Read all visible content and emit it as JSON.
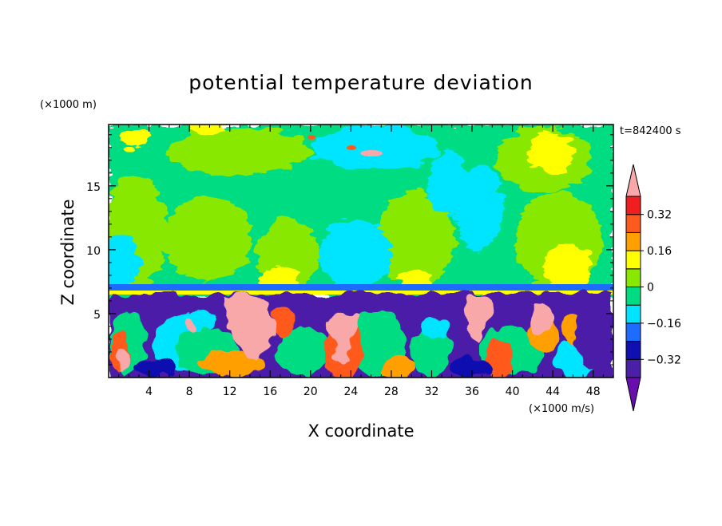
{
  "chart_data": {
    "type": "heatmap",
    "title": "potential temperature deviation",
    "xlabel": "X coordinate",
    "ylabel": "Z coordinate",
    "x_unit_label": "(×1000 m/s)",
    "y_unit_label": "(×1000 m)",
    "time_label": "t=842400 s",
    "xlim": [
      0,
      50
    ],
    "ylim": [
      0,
      19.8
    ],
    "x_ticks": [
      4,
      8,
      12,
      16,
      20,
      24,
      28,
      32,
      36,
      40,
      44,
      48
    ],
    "y_ticks": [
      5,
      10,
      15
    ],
    "x_tick_labels": [
      "4",
      "8",
      "12",
      "16",
      "20",
      "24",
      "28",
      "32",
      "36",
      "40",
      "44",
      "48"
    ],
    "y_tick_labels": [
      "5",
      "10",
      "15"
    ],
    "colorbar": {
      "levels": [
        -0.4,
        -0.32,
        -0.24,
        -0.16,
        -0.08,
        0,
        0.08,
        0.16,
        0.24,
        0.32,
        0.4
      ],
      "labeled_levels": [
        -0.32,
        -0.16,
        0,
        0.16,
        0.32
      ],
      "labels": [
        "−0.32",
        "−0.16",
        "0",
        "0.16",
        "0.32"
      ],
      "colors": [
        "#6a0dad",
        "#4b1fa8",
        "#1010b0",
        "#1e6cff",
        "#00e5ff",
        "#00dc82",
        "#88e800",
        "#ffff00",
        "#ffa000",
        "#ff5a1e",
        "#f01e1e",
        "#f8a8a8"
      ],
      "extend": "both"
    }
  }
}
